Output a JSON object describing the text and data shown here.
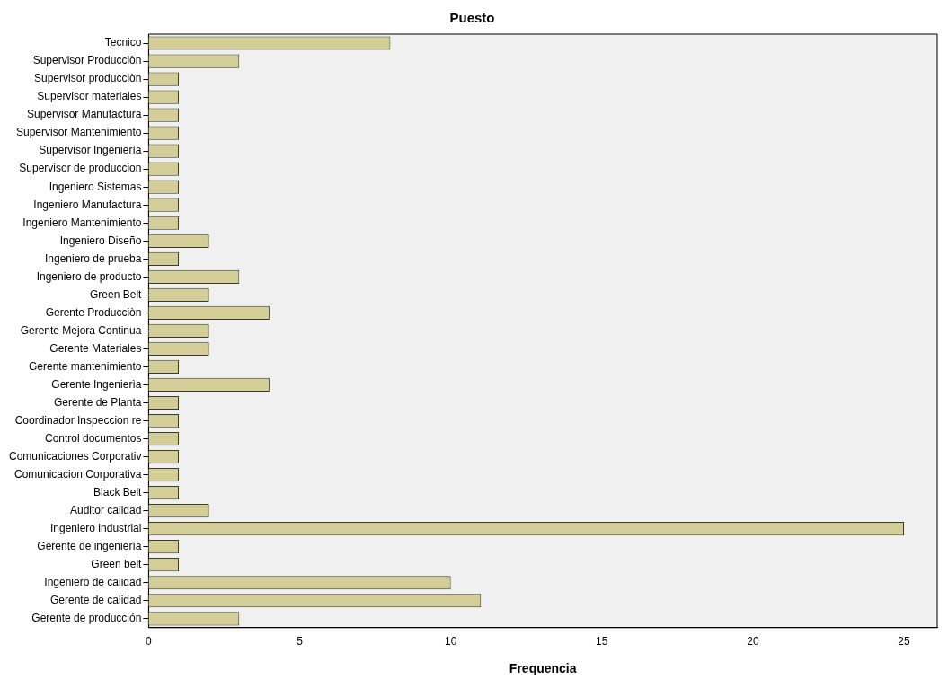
{
  "chart_data": {
    "type": "bar",
    "orientation": "horizontal",
    "title": "Puesto",
    "xlabel": "Frequencia",
    "categories": [
      "Tecnico",
      "Supervisor Producciòn",
      "Supervisor producciòn",
      "Supervisor materiales",
      "Supervisor Manufactura",
      "Supervisor Mantenimiento",
      "Supervisor Ingenierìa",
      "Supervisor de produccion",
      "Ingeniero Sistemas",
      "Ingeniero Manufactura",
      "Ingeniero Mantenimiento",
      "Ingeniero Diseño",
      "Ingeniero de prueba",
      "Ingeniero de producto",
      "Green Belt",
      "Gerente Producciòn",
      "Gerente Mejora Continua",
      "Gerente Materiales",
      "Gerente mantenimiento",
      "Gerente Ingenierìa",
      "Gerente de Planta",
      "Coordinador Inspeccion re",
      "Control documentos",
      "Comunicaciones Corporativ",
      "Comunicacion Corporativa",
      "Black Belt",
      "Auditor calidad",
      "Ingeniero industrial",
      "Gerente de ingeniería",
      "Green belt",
      "Ingeniero de calidad",
      "Gerente de calidad",
      "Gerente de producción"
    ],
    "values": [
      8,
      3,
      1,
      1,
      1,
      1,
      1,
      1,
      1,
      1,
      1,
      2,
      1,
      3,
      2,
      4,
      2,
      2,
      1,
      4,
      1,
      1,
      1,
      1,
      1,
      1,
      2,
      25,
      1,
      1,
      10,
      11,
      3
    ],
    "color": "#d3ce97",
    "xlim": [
      0,
      26.1
    ],
    "xticks": [
      0,
      5,
      10,
      15,
      20,
      25
    ],
    "grid": false,
    "legend": false
  }
}
